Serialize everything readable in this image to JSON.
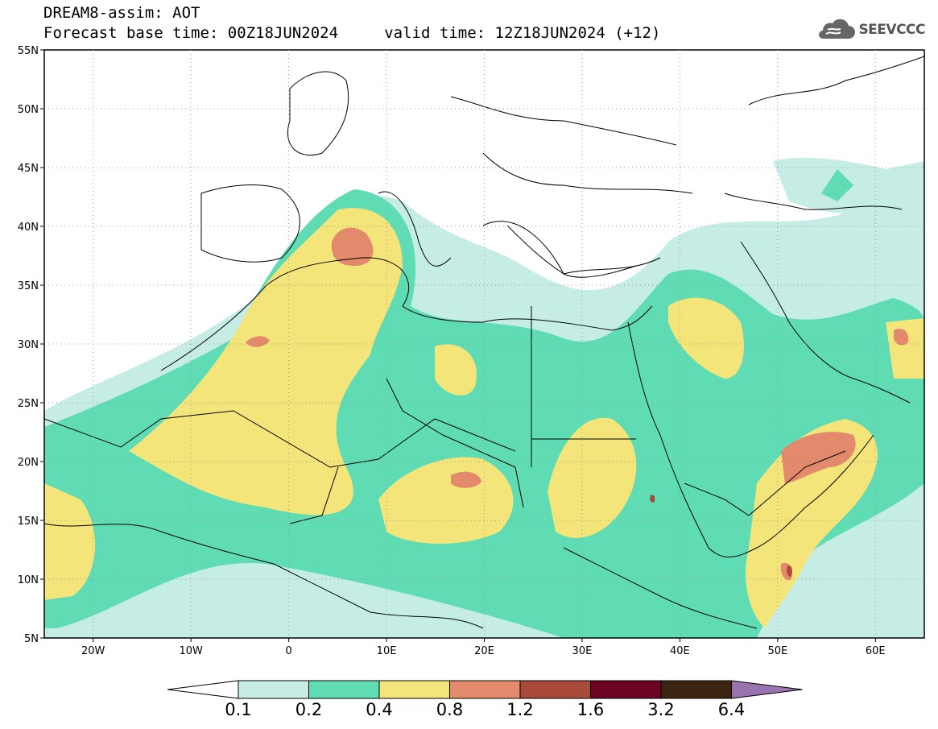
{
  "header": {
    "title_line1": "DREAM8-assim: AOT",
    "title_line2": "Forecast base time: 00Z18JUN2024     valid time: 12Z18JUN2024 (+12)",
    "logo_text": "SEEVCCC"
  },
  "map": {
    "lat_labels": [
      "55N",
      "50N",
      "45N",
      "40N",
      "35N",
      "30N",
      "25N",
      "20N",
      "15N",
      "10N",
      "5N"
    ],
    "lon_labels": [
      "20W",
      "10W",
      "0",
      "10E",
      "20E",
      "30E",
      "40E",
      "50E",
      "60E"
    ],
    "grid_lines": true
  },
  "colorbar": {
    "labels": [
      "0.1",
      "0.2",
      "0.4",
      "0.8",
      "1.2",
      "1.6",
      "3.2",
      "6.4"
    ],
    "colors": [
      "#ffffff",
      "#c5ede6",
      "#5fdcb4",
      "#f3e57a",
      "#e3896c",
      "#a8493a",
      "#6d0322",
      "#3b2412",
      "#9a74b0"
    ]
  },
  "colors": {
    "level_0_1": "#c5ede6",
    "level_0_2": "#5fdcb4",
    "level_0_4": "#f3e57a",
    "level_0_8": "#e3896c",
    "level_1_2": "#a8493a"
  }
}
